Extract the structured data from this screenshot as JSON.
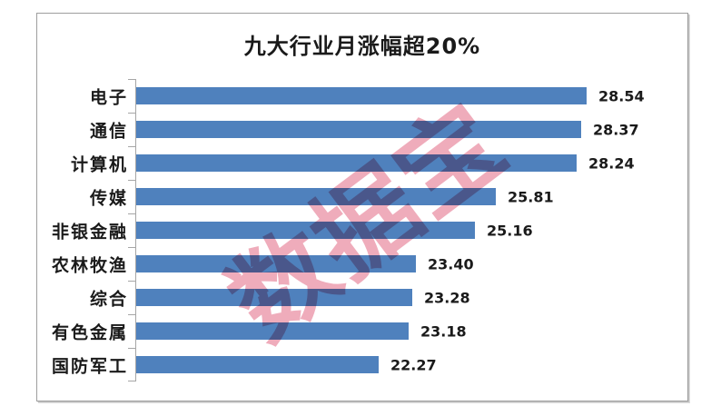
{
  "watermark": {
    "text": "数据宝",
    "color": "#df5a78"
  },
  "colors": {
    "bar": "#4f81bd",
    "axis": "#a6a6a6",
    "frame_border": "#9e9e9e",
    "text": "#1a1a1a",
    "watermark_pink": "#df5a78",
    "background": "#ffffff"
  },
  "chart_data": {
    "type": "bar",
    "orientation": "horizontal",
    "title": "九大行业月涨幅超20%",
    "categories": [
      "电子",
      "通信",
      "计算机",
      "传媒",
      "非银金融",
      "农林牧渔",
      "综合",
      "有色金属",
      "国防军工"
    ],
    "values": [
      28.54,
      28.37,
      28.24,
      25.81,
      25.16,
      23.4,
      23.28,
      23.18,
      22.27
    ],
    "value_labels": [
      "28.54",
      "28.37",
      "28.24",
      "25.81",
      "25.16",
      "23.40",
      "23.28",
      "23.18",
      "22.27"
    ],
    "xlabel": "",
    "ylabel": "",
    "xlim": [
      15,
      30
    ],
    "grid": false,
    "legend": false,
    "data_labels": "outside-end",
    "bar_color": "#4f81bd"
  }
}
